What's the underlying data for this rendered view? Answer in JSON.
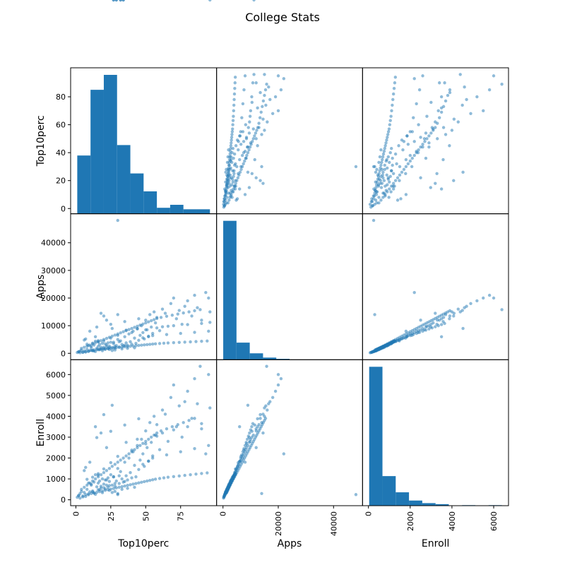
{
  "figure": {
    "title": "College Stats"
  },
  "chart_data": {
    "type": "scatter",
    "variables": [
      "Top10perc",
      "Apps",
      "Enroll"
    ],
    "ranges": {
      "Top10perc": [
        1,
        96
      ],
      "Apps": [
        81,
        48094
      ],
      "Enroll": [
        35,
        6392
      ]
    },
    "axis_limits": {
      "Top10perc": [
        -3.75,
        100.75
      ],
      "Apps": [
        -2319,
        50494
      ],
      "Enroll": [
        -283,
        6710
      ]
    },
    "ticks": {
      "Top10perc": [
        0,
        25,
        50,
        75
      ],
      "Apps": [
        0,
        20000,
        40000
      ],
      "Enroll": [
        0,
        2000,
        4000,
        6000
      ]
    },
    "tick_labels": {
      "row": {
        "Top10perc": [
          "0",
          "20",
          "40",
          "60",
          "80"
        ],
        "Apps": [
          "0",
          "10000",
          "20000",
          "30000",
          "40000"
        ],
        "Enroll": [
          "0",
          "1000",
          "2000",
          "3000",
          "4000",
          "5000",
          "6000"
        ]
      },
      "col": {
        "Top10perc": [
          "0",
          "25",
          "50",
          "75"
        ],
        "Apps": [
          "0",
          "20000",
          "40000"
        ],
        "Enroll": [
          "0",
          "2000",
          "4000",
          "6000"
        ]
      }
    },
    "row_tick_values": {
      "Top10perc": [
        0,
        20,
        40,
        60,
        80
      ],
      "Apps": [
        0,
        10000,
        20000,
        30000,
        40000
      ],
      "Enroll": [
        0,
        1000,
        2000,
        3000,
        4000,
        5000,
        6000
      ]
    },
    "histograms": {
      "Top10perc": {
        "edges": [
          1,
          10.5,
          20,
          29.5,
          39,
          48.5,
          58,
          67.5,
          77,
          86.5,
          96
        ],
        "counts": [
          39,
          83,
          93,
          46,
          27,
          15,
          4,
          6,
          3,
          3
        ]
      },
      "Apps": {
        "edges": [
          81,
          4882,
          9684,
          14485,
          19286,
          24088,
          28889,
          33690,
          38491,
          43293,
          48094
        ],
        "counts": [
          650,
          80,
          30,
          10,
          4,
          0,
          0,
          0,
          0,
          1
        ]
      },
      "Enroll": {
        "edges": [
          35,
          671,
          1306,
          1942,
          2578,
          3214,
          3849,
          4485,
          5121,
          5756,
          6392
        ],
        "counts": [
          540,
          115,
          52,
          20,
          10,
          6,
          0,
          2,
          1,
          2
        ]
      }
    },
    "points": {
      "Top10perc": [
        1,
        2,
        3,
        4,
        5,
        6,
        7,
        8,
        9,
        10,
        11,
        12,
        13,
        14,
        15,
        16,
        17,
        18,
        19,
        20,
        21,
        22,
        23,
        24,
        25,
        26,
        27,
        28,
        29,
        30,
        31,
        32,
        33,
        34,
        35,
        36,
        37,
        38,
        39,
        40,
        41,
        42,
        43,
        44,
        45,
        46,
        47,
        48,
        49,
        50,
        51,
        52,
        53,
        54,
        55,
        56,
        57,
        58,
        60,
        62,
        64,
        66,
        68,
        70,
        72,
        74,
        76,
        78,
        80,
        83,
        85,
        87,
        90,
        95,
        96,
        3,
        5,
        7,
        9,
        11,
        13,
        15,
        17,
        19,
        21,
        23,
        25,
        27,
        29,
        31,
        33,
        35,
        37,
        39,
        41,
        43,
        45,
        47,
        49,
        51,
        53,
        55,
        57,
        60,
        63,
        66,
        70,
        74,
        78,
        82,
        86,
        90,
        94,
        2,
        4,
        6,
        8,
        10,
        12,
        14,
        16,
        18,
        20,
        22,
        24,
        26,
        28,
        30,
        32,
        34,
        36,
        38,
        40,
        42,
        44,
        46,
        48,
        50,
        52,
        54,
        56,
        58,
        61,
        65,
        69,
        73,
        77,
        81,
        85,
        89,
        93,
        10,
        14,
        18,
        22,
        26,
        30,
        12,
        16,
        20,
        24,
        28,
        35,
        8,
        12,
        16,
        20,
        25,
        30,
        40,
        50,
        15,
        25,
        35,
        45,
        20,
        30,
        26,
        28,
        24,
        33,
        37,
        42,
        18,
        22,
        11,
        9,
        13,
        17,
        21,
        19,
        23,
        27,
        31,
        14,
        16,
        6,
        7,
        48,
        52,
        55,
        65,
        75,
        85,
        95,
        36,
        44,
        58,
        62,
        70,
        80,
        90,
        96,
        27,
        29,
        32,
        34
      ],
      "Apps": [
        300,
        500,
        800,
        1200,
        400,
        900,
        600,
        1500,
        700,
        1000,
        2000,
        1100,
        850,
        650,
        1800,
        2500,
        1300,
        1600,
        950,
        2200,
        1400,
        3000,
        1700,
        2600,
        4000,
        2100,
        3500,
        1900,
        2800,
        5000,
        2300,
        4500,
        3200,
        2700,
        6000,
        3800,
        2900,
        7000,
        4200,
        3300,
        8000,
        5500,
        3600,
        9000,
        4700,
        6500,
        10000,
        7500,
        5200,
        12000,
        8500,
        6200,
        14000,
        9500,
        7200,
        15000,
        11000,
        13000,
        8200,
        16000,
        14500,
        9800,
        18000,
        20000,
        12500,
        15500,
        10500,
        17000,
        19000,
        13500,
        21000,
        16500,
        12000,
        20000,
        15000,
        200,
        350,
        450,
        750,
        1050,
        1250,
        1350,
        1450,
        1550,
        1650,
        1750,
        1850,
        1950,
        2050,
        2150,
        2250,
        2350,
        2450,
        2550,
        2650,
        2750,
        2850,
        2950,
        3050,
        3150,
        3250,
        3350,
        3450,
        3550,
        3650,
        3750,
        3850,
        3950,
        4050,
        4150,
        4250,
        4350,
        4450,
        600,
        1800,
        2200,
        2600,
        3000,
        3400,
        3800,
        4200,
        4600,
        5000,
        5400,
        5800,
        6200,
        6600,
        7000,
        7400,
        7800,
        8200,
        8600,
        9000,
        9400,
        9800,
        10200,
        10600,
        11000,
        11400,
        11800,
        12200,
        12600,
        13000,
        13400,
        13800,
        14200,
        14600,
        15000,
        15400,
        15800,
        22000,
        8000,
        6000,
        14500,
        12000,
        9000,
        48094,
        900,
        1300,
        1700,
        2100,
        2500,
        2900,
        3300,
        3700,
        4100,
        4500,
        5500,
        6500,
        7500,
        8500,
        9500,
        10500,
        11500,
        12500,
        13500,
        14000,
        1000,
        1200,
        1400,
        1600,
        1800,
        2000,
        2200,
        2400,
        2600,
        2800,
        3000,
        3200,
        3400,
        3600,
        3800,
        4000,
        4200,
        4400,
        4600,
        4800,
        5200,
        5600,
        6000,
        6400,
        6800,
        7200,
        7600,
        8000,
        8400,
        8800,
        9200,
        9600,
        10000,
        10400,
        10800,
        11200
      ],
      "Enroll": [
        120,
        200,
        300,
        400,
        180,
        350,
        250,
        500,
        280,
        380,
        700,
        420,
        320,
        260,
        620,
        800,
        480,
        560,
        340,
        750,
        520,
        950,
        600,
        880,
        1200,
        700,
        1100,
        650,
        900,
        1500,
        780,
        1350,
        1000,
        850,
        1800,
        1150,
        950,
        2000,
        1300,
        1050,
        2300,
        1650,
        1100,
        2600,
        1450,
        1900,
        2900,
        2200,
        1600,
        3300,
        2500,
        1850,
        3700,
        2750,
        2100,
        4000,
        3100,
        3600,
        2400,
        4300,
        4100,
        2800,
        4900,
        5500,
        3500,
        4500,
        3000,
        4700,
        5200,
        3900,
        5800,
        4600,
        3400,
        6000,
        4400,
        80,
        140,
        160,
        240,
        300,
        330,
        360,
        390,
        420,
        450,
        480,
        510,
        540,
        570,
        600,
        630,
        660,
        690,
        720,
        750,
        780,
        810,
        840,
        870,
        900,
        930,
        960,
        990,
        1020,
        1050,
        1080,
        1110,
        1140,
        1170,
        1200,
        1230,
        1260,
        1290,
        200,
        500,
        600,
        700,
        800,
        900,
        1000,
        1100,
        1200,
        1300,
        1400,
        1500,
        1600,
        1700,
        1800,
        1900,
        2000,
        2100,
        2200,
        2300,
        2400,
        2500,
        2600,
        2700,
        2800,
        2900,
        3000,
        3100,
        3200,
        3300,
        3400,
        3500,
        3600,
        3700,
        3800,
        3900,
        6392,
        2200,
        1800,
        3500,
        3200,
        2500,
        4530,
        250,
        380,
        480,
        580,
        680,
        780,
        880,
        980,
        1080,
        1180,
        1480,
        1780,
        2080,
        2380,
        2680,
        2980,
        3280,
        3580,
        3880,
        4080,
        300,
        350,
        400,
        450,
        500,
        550,
        600,
        650,
        700,
        750,
        800,
        850,
        900,
        950,
        1000,
        1050,
        1100,
        1150,
        1200,
        1250,
        1400,
        1550,
        1700,
        1850,
        2000,
        2150,
        2300,
        2450,
        2600,
        2750,
        2900,
        3050,
        3200,
        3350,
        3500,
        3650
      ]
    },
    "colors": {
      "bars": "#1f77b4",
      "points": "#1f77b4"
    }
  }
}
